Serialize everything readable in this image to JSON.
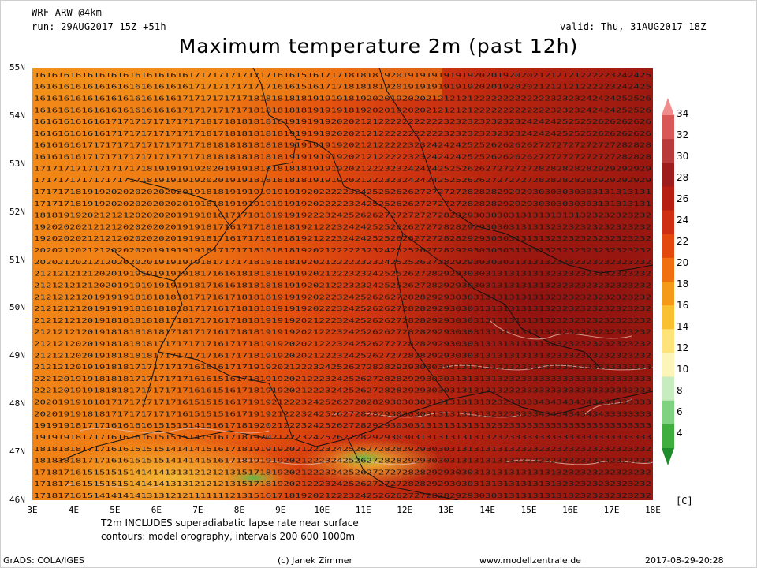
{
  "header": {
    "model": "WRF-ARW @4km",
    "run": "run: 29AUG2017 15Z +51h",
    "valid": "valid: Thu, 31AUG2017 18Z",
    "title": "Maximum temperature 2m (past 12h)"
  },
  "map": {
    "lat_labels": [
      "55N",
      "54N",
      "53N",
      "52N",
      "51N",
      "50N",
      "49N",
      "48N",
      "47N",
      "46N"
    ],
    "lon_labels": [
      "3E",
      "4E",
      "5E",
      "6E",
      "7E",
      "8E",
      "9E",
      "10E",
      "11E",
      "12E",
      "13E",
      "14E",
      "15E",
      "16E",
      "17E",
      "18E"
    ],
    "lat_range": [
      46,
      55
    ],
    "lon_range": [
      3,
      18
    ],
    "overlay": "2-m maximum temperature values printed on grid, country borders and orography contours",
    "row_values": [
      "16161616161616161616161616171717171717171616151617171818181920191919191919202019202021212121222223242425",
      "16161616161616161616161617171717171718181818181919191819202019202021212121222222222222232323242424252526",
      "16161616161617171717171717171817181818181819191919202021212222222222232323232323232424242525252626262626",
      "16161616171717171717171717171818181818181819191919192021212222232324242425252626262627272727272727282828",
      "17171717171717171718191919192020191918181818181919192021222323242424252526262727272728282828282929292929",
      "17171718191920202020202020191818191919191919192022222324252526262727272728282829292930303030303131313131",
      "18181919202121212020202019191816171718181919192223242526262727272727282829303030313131313131323232323232",
      "19202020212121202020202019191817161717181818192122232424252526262727282829293030313131323232323232323232",
      "20202120212120202020191919191817171718181818192021222223232425252627282929303030313131323232323232323232",
      "21212121212020191919191919181716161818181819192021222323242525262728292930303131313131323232323232323232",
      "21212121201919191818181818171716171818181919192022232425262627282829293030313131313131323232323232323232",
      "21212121201918181818181718171716171818191919202122232425262627282829293030313131313131323232323232323232",
      "21212120201918181818171717171716171718191920202122232425262727282829293030313131313131323232323232323232",
      "21212120191918181717171717161616171719192021222324252627282829293030303131313132323333333333333333333333",
      "22212019191818181717171717161615161718191920212223242526272828292930303131313132323333333333333333333333",
      "20201919181817171717171716151515161719192122232425262728282930303031313131313232333334343434343433333333",
      "19191918171716161616151515141516171819202122232425262728292930303131313131313232333333333333333333333333",
      "18181818171716161515151414141516171819191920212223242526272828292930303131313131323232323232323232323232",
      "17181716151515151414141313121212131517181920212223242526272727282829293030313131313131313232323232323232",
      "17181716151414141413131212111111121315161718192021222324252626272728282929303031313131313132323232323232"
    ]
  },
  "notes": {
    "line1": "T2m INCLUDES superadiabatic lapse rate near surface",
    "line2": "contours: model orography, intervals 200 600 1000m"
  },
  "colorbar": {
    "labels": [
      "34",
      "32",
      "30",
      "28",
      "26",
      "24",
      "22",
      "20",
      "18",
      "16",
      "14",
      "12",
      "10",
      "8",
      "6",
      "4"
    ],
    "colors": [
      "#f08c8c",
      "#d85858",
      "#b83a3a",
      "#9e1c1c",
      "#b71f12",
      "#cf2f10",
      "#e4480c",
      "#f07010",
      "#f59a18",
      "#f9c031",
      "#fde37a",
      "#fcf4b8",
      "#c6ecc0",
      "#7fd27f",
      "#3fae3f",
      "#1f8c2a"
    ],
    "unit": "[C]"
  },
  "footer": {
    "left": "GrADS: COLA/IGES",
    "center": "(c) Janek Zimmer",
    "site": "www.modellzentrale.de",
    "timestamp": "2017-08-29-20:28"
  }
}
